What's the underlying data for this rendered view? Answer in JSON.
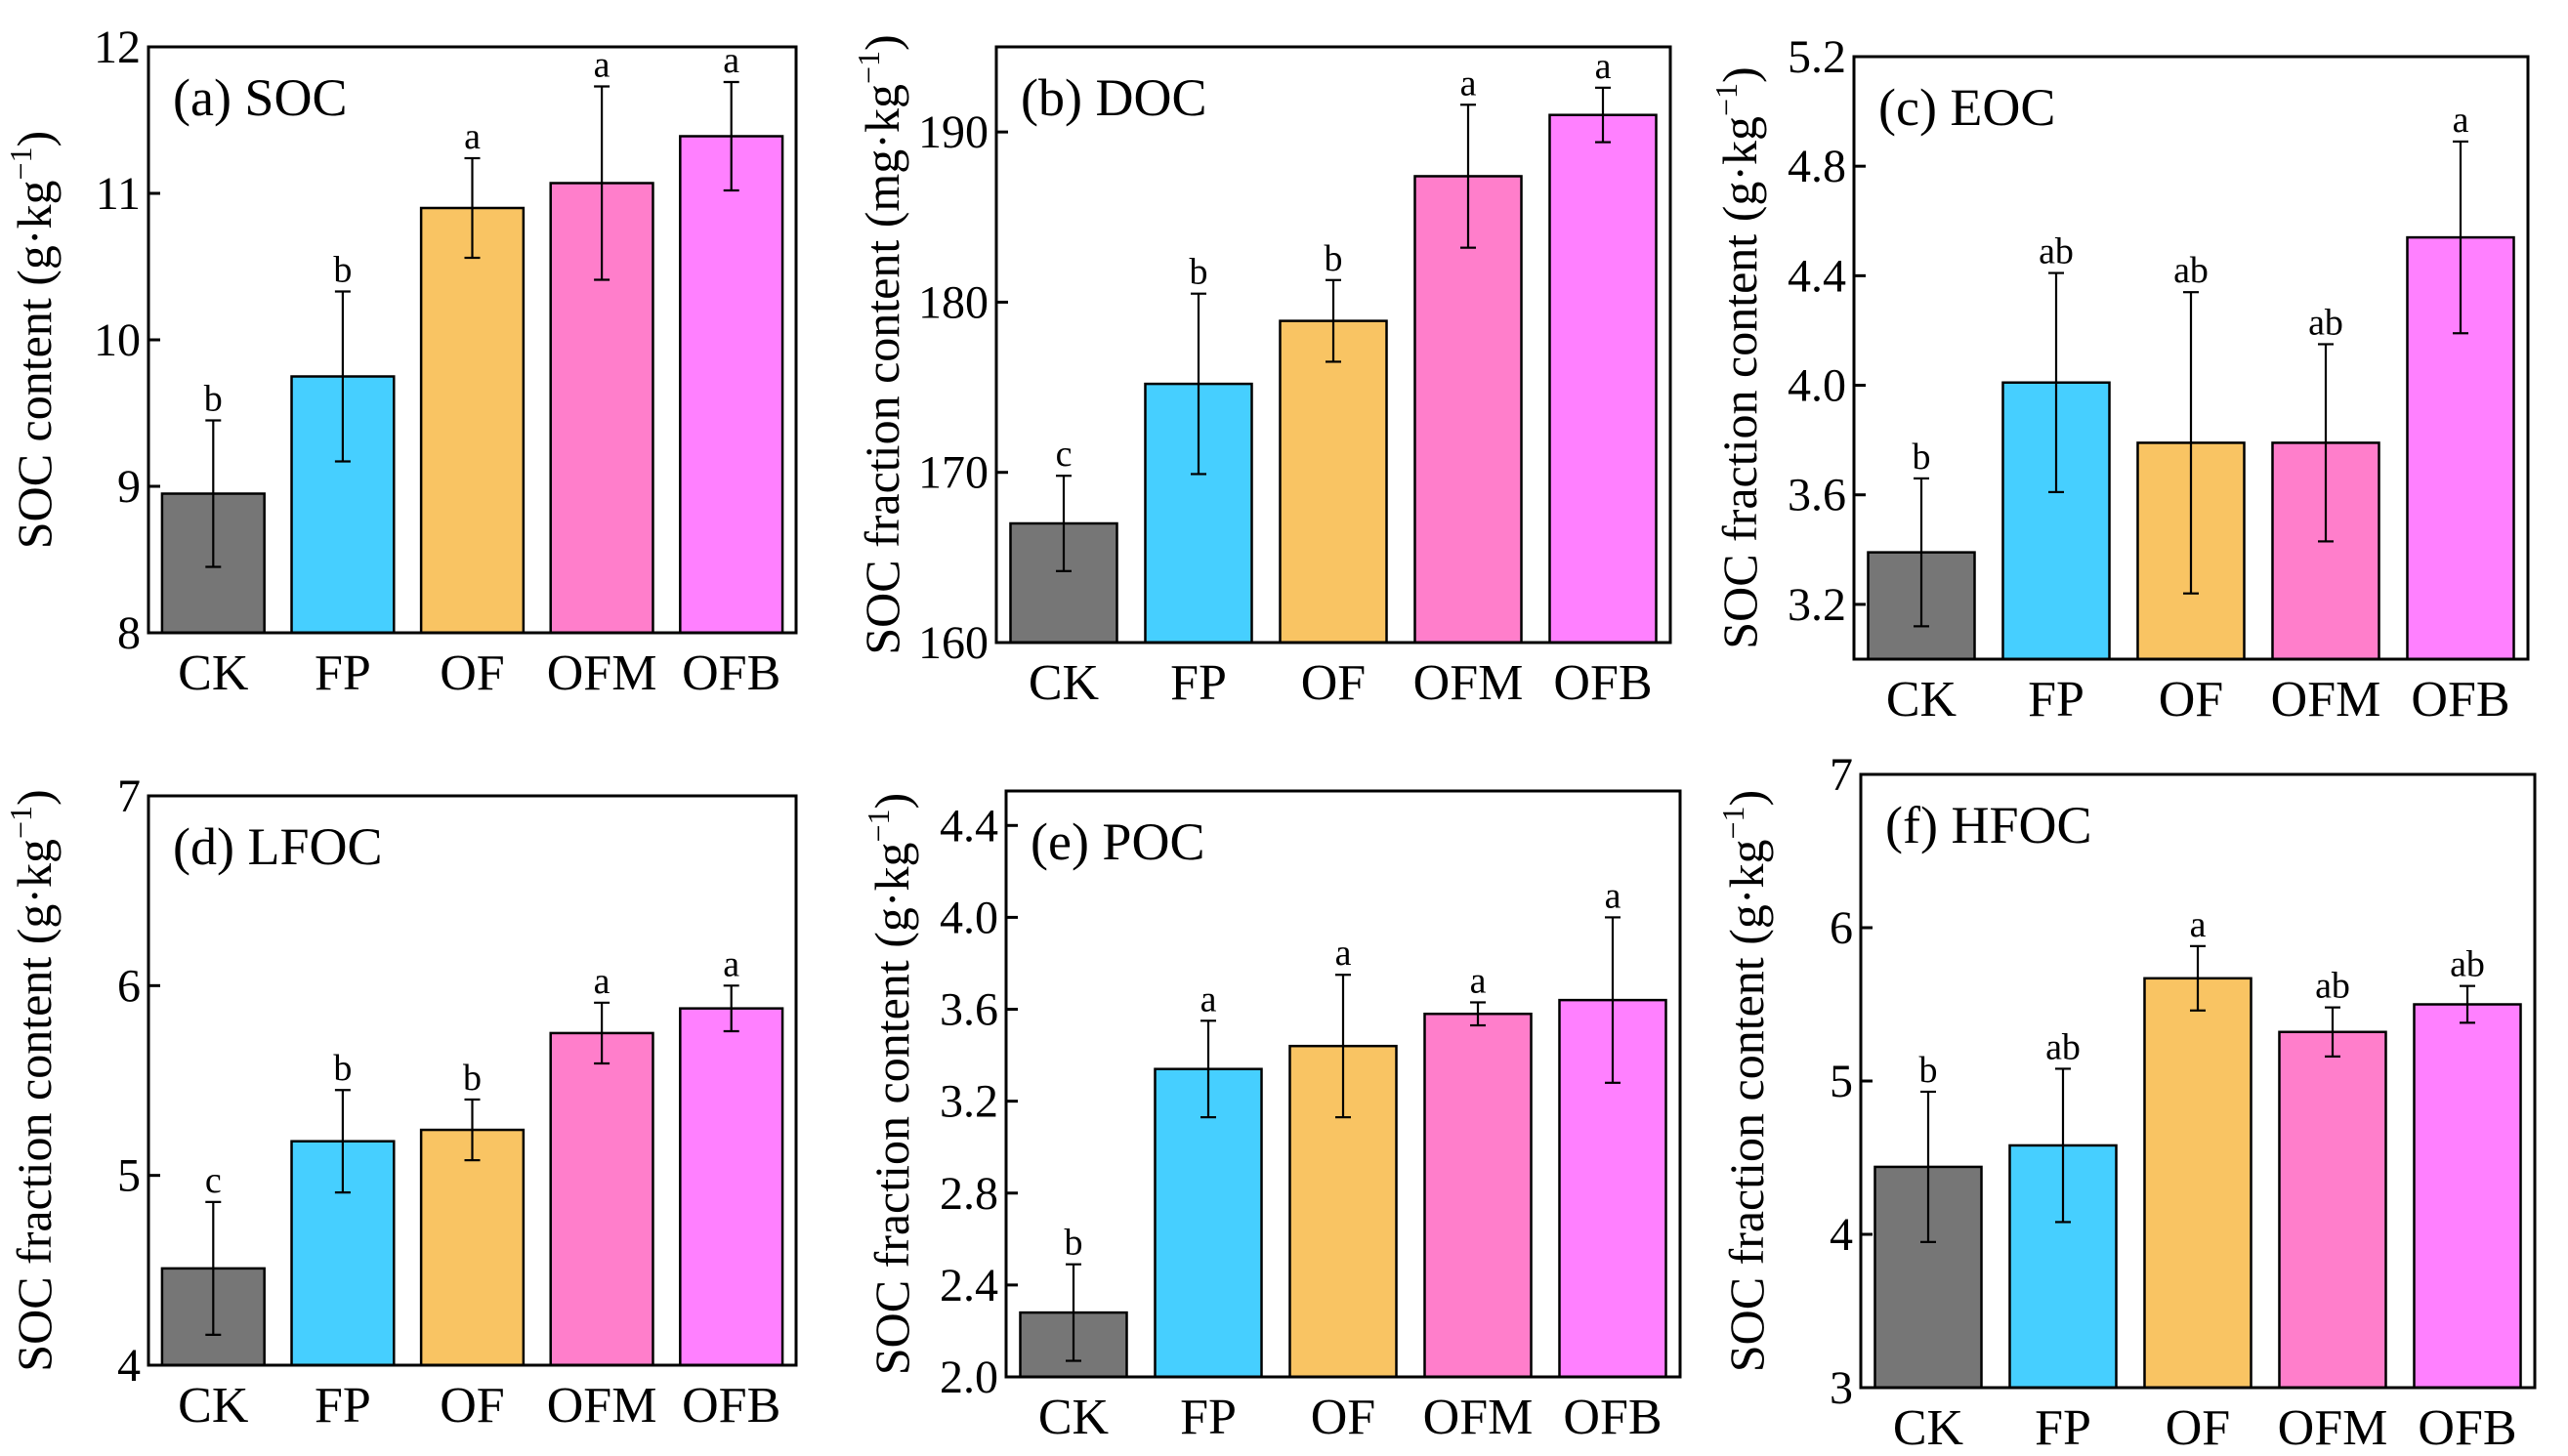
{
  "colors": {
    "CK": "#767676",
    "FP": "#46cfff",
    "OF": "#f9c463",
    "OFM": "#ff7ecb",
    "OFB": "#ff80ff"
  },
  "chart_data": [
    {
      "type": "bar",
      "title": "(a) SOC",
      "ylabel": "SOC content (g·kg−1)",
      "ylabel_main": "SOC content (g·kg",
      "ylabel_sup": "−1",
      "ylabel_close": ")",
      "categories": [
        "CK",
        "FP",
        "OF",
        "OFM",
        "OFB"
      ],
      "values": [
        8.95,
        9.75,
        10.9,
        11.07,
        11.39
      ],
      "errors": [
        0.5,
        0.58,
        0.34,
        0.66,
        0.37
      ],
      "letters": [
        "b",
        "b",
        "a",
        "a",
        "a"
      ],
      "ylim": [
        8,
        12
      ],
      "yticks": [
        8,
        9,
        10,
        11,
        12
      ],
      "ytick_labels": [
        "8",
        "9",
        "10",
        "11",
        "12"
      ]
    },
    {
      "type": "bar",
      "title": "(b) DOC",
      "ylabel": "SOC fraction content (mg·kg−1)",
      "ylabel_main": "SOC fraction content (mg·kg",
      "ylabel_sup": "−1",
      "ylabel_close": ")",
      "categories": [
        "CK",
        "FP",
        "OF",
        "OFM",
        "OFB"
      ],
      "values": [
        167.0,
        175.2,
        178.9,
        187.4,
        191.0
      ],
      "errors": [
        2.8,
        5.3,
        2.4,
        4.2,
        1.6
      ],
      "letters": [
        "c",
        "b",
        "b",
        "a",
        "a"
      ],
      "ylim": [
        160,
        195
      ],
      "yticks": [
        160,
        170,
        180,
        190
      ],
      "ytick_labels": [
        "160",
        "170",
        "180",
        "190"
      ]
    },
    {
      "type": "bar",
      "title": "(c) EOC",
      "ylabel": "SOC fraction content (g·kg−1)",
      "ylabel_main": "SOC fraction content (g·kg",
      "ylabel_sup": "−1",
      "ylabel_close": ")",
      "categories": [
        "CK",
        "FP",
        "OF",
        "OFM",
        "OFB"
      ],
      "values": [
        3.39,
        4.01,
        3.79,
        3.79,
        4.54
      ],
      "errors": [
        0.27,
        0.4,
        0.55,
        0.36,
        0.35
      ],
      "letters": [
        "b",
        "ab",
        "ab",
        "ab",
        "a"
      ],
      "ylim": [
        3.0,
        5.2
      ],
      "yticks": [
        3.2,
        3.6,
        4.0,
        4.4,
        4.8,
        5.2
      ],
      "ytick_labels": [
        "3.2",
        "3.6",
        "4.0",
        "4.4",
        "4.8",
        "5.2"
      ]
    },
    {
      "type": "bar",
      "title": "(d) LFOC",
      "ylabel": "SOC fraction content (g·kg−1)",
      "ylabel_main": "SOC fraction content (g·kg",
      "ylabel_sup": "−1",
      "ylabel_close": ")",
      "categories": [
        "CK",
        "FP",
        "OF",
        "OFM",
        "OFB"
      ],
      "values": [
        4.51,
        5.18,
        5.24,
        5.75,
        5.88
      ],
      "errors": [
        0.35,
        0.27,
        0.16,
        0.16,
        0.12
      ],
      "letters": [
        "c",
        "b",
        "b",
        "a",
        "a"
      ],
      "ylim": [
        4,
        7
      ],
      "yticks": [
        4,
        5,
        6,
        7
      ],
      "ytick_labels": [
        "4",
        "5",
        "6",
        "7"
      ]
    },
    {
      "type": "bar",
      "title": "(e) POC",
      "ylabel": "SOC fraction content (g·kg−1)",
      "ylabel_main": "SOC fraction content (g·kg",
      "ylabel_sup": "−1",
      "ylabel_close": ")",
      "categories": [
        "CK",
        "FP",
        "OF",
        "OFM",
        "OFB"
      ],
      "values": [
        2.28,
        3.34,
        3.44,
        3.58,
        3.64
      ],
      "errors": [
        0.21,
        0.21,
        0.31,
        0.05,
        0.36
      ],
      "letters": [
        "b",
        "a",
        "a",
        "a",
        "a"
      ],
      "ylim": [
        2.0,
        4.55
      ],
      "yticks": [
        2.0,
        2.4,
        2.8,
        3.2,
        3.6,
        4.0,
        4.4
      ],
      "ytick_labels": [
        "2.0",
        "2.4",
        "2.8",
        "3.2",
        "3.6",
        "4.0",
        "4.4"
      ]
    },
    {
      "type": "bar",
      "title": "(f) HFOC",
      "ylabel": "SOC fraction content (g·kg−1)",
      "ylabel_main": "SOC fraction content (g·kg",
      "ylabel_sup": "−1",
      "ylabel_close": ")",
      "categories": [
        "CK",
        "FP",
        "OF",
        "OFM",
        "OFB"
      ],
      "values": [
        4.44,
        4.58,
        5.67,
        5.32,
        5.5
      ],
      "errors": [
        0.49,
        0.5,
        0.21,
        0.16,
        0.12
      ],
      "letters": [
        "b",
        "ab",
        "a",
        "ab",
        "ab"
      ],
      "ylim": [
        3,
        7
      ],
      "yticks": [
        3,
        4,
        5,
        6,
        7
      ],
      "ytick_labels": [
        "3",
        "4",
        "5",
        "6",
        "7"
      ]
    }
  ]
}
